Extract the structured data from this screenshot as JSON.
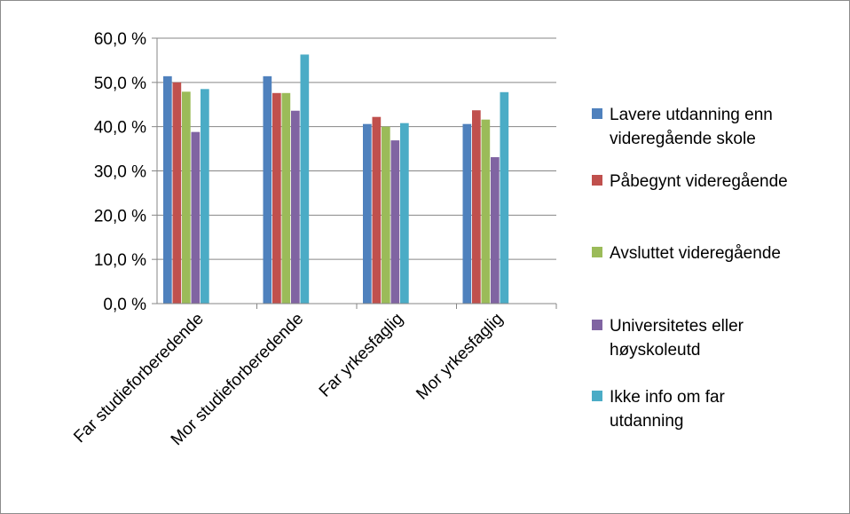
{
  "chart_data": {
    "type": "bar",
    "categories": [
      "Far studieforberedende",
      "Mor studieforberedende",
      "Far yrkesfaglig",
      "Mor yrkesfaglig"
    ],
    "series": [
      {
        "name": "Lavere utdanning enn videregående skole",
        "color": "#4f81bd",
        "values": [
          51.4,
          51.4,
          40.6,
          40.6
        ]
      },
      {
        "name": "Påbegynt videregående",
        "color": "#c0504d",
        "values": [
          50.0,
          47.6,
          42.2,
          43.7
        ]
      },
      {
        "name": "Avsluttet videregående",
        "color": "#9bbb59",
        "values": [
          47.9,
          47.6,
          40.0,
          41.6
        ]
      },
      {
        "name": "Universitetes eller høyskoleutd",
        "color": "#8064a2",
        "values": [
          38.8,
          43.6,
          36.9,
          33.1
        ]
      },
      {
        "name": "Ikke info om far utdanning",
        "color": "#4bacc6",
        "values": [
          48.5,
          56.3,
          40.8,
          47.8
        ]
      }
    ],
    "ylim": [
      0,
      60
    ],
    "yticks": [
      "0,0 %",
      "10,0 %",
      "20,0 %",
      "30,0 %",
      "40,0 %",
      "50,0 %",
      "60,0 %"
    ],
    "grid": true,
    "legend_position": "right"
  }
}
